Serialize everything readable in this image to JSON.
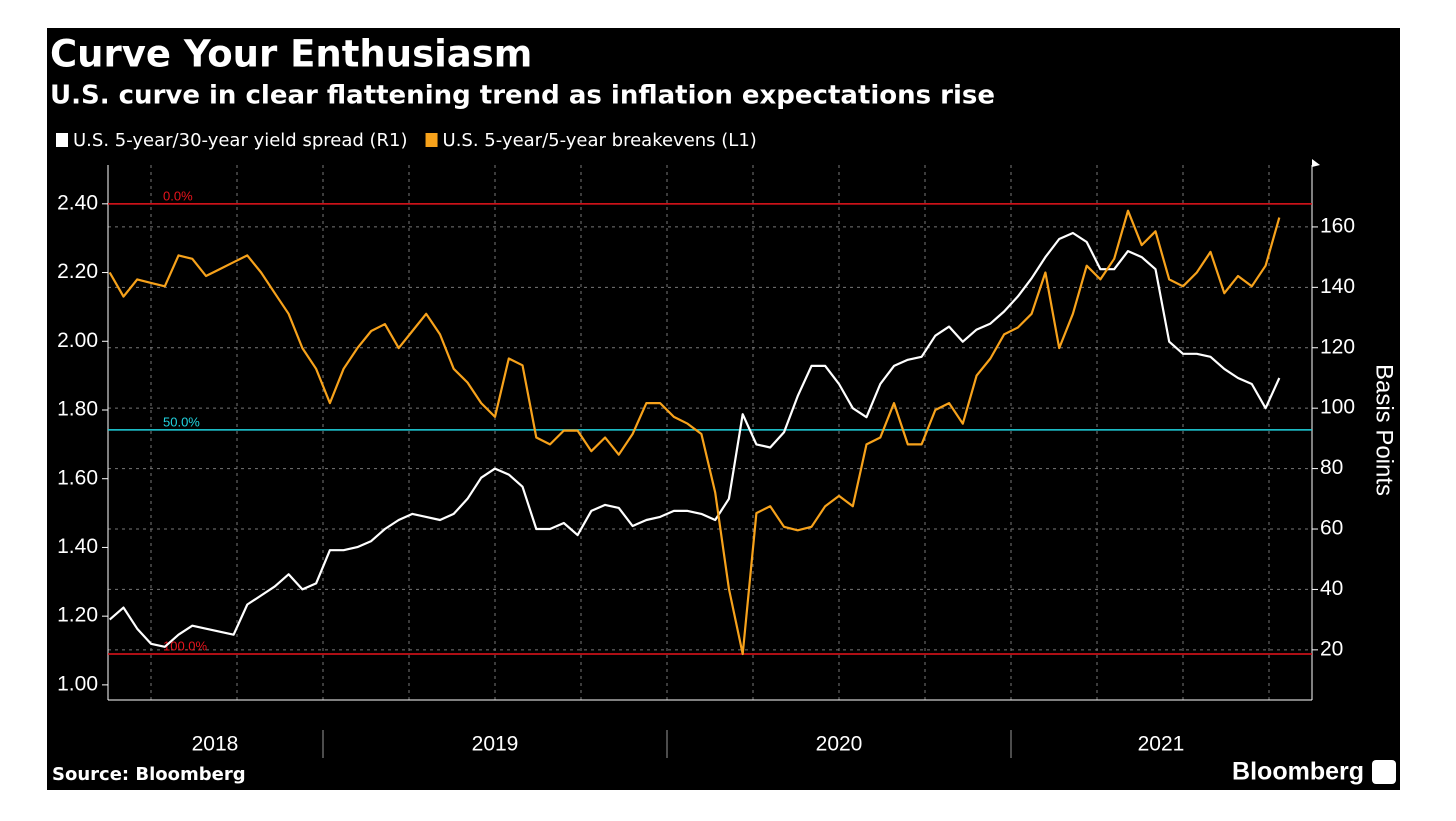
{
  "chart_data": {
    "type": "line",
    "title": "Curve Your Enthusiasm",
    "subtitle": "U.S. curve in clear flattening trend as inflation expectations rise",
    "source": "Source: Bloomberg",
    "logo": "Bloomberg",
    "y2_label": "Basis Points",
    "x": [
      2018.38,
      2018.42,
      2018.46,
      2018.5,
      2018.54,
      2018.58,
      2018.62,
      2018.66,
      2018.7,
      2018.74,
      2018.78,
      2018.82,
      2018.86,
      2018.9,
      2018.94,
      2018.98,
      2019.02,
      2019.06,
      2019.1,
      2019.14,
      2019.18,
      2019.22,
      2019.26,
      2019.3,
      2019.34,
      2019.38,
      2019.42,
      2019.46,
      2019.5,
      2019.54,
      2019.58,
      2019.62,
      2019.66,
      2019.7,
      2019.74,
      2019.78,
      2019.82,
      2019.86,
      2019.9,
      2019.94,
      2019.98,
      2020.02,
      2020.06,
      2020.1,
      2020.14,
      2020.18,
      2020.22,
      2020.26,
      2020.3,
      2020.34,
      2020.38,
      2020.42,
      2020.46,
      2020.5,
      2020.54,
      2020.58,
      2020.62,
      2020.66,
      2020.7,
      2020.74,
      2020.78,
      2020.82,
      2020.86,
      2020.9,
      2020.94,
      2020.98,
      2021.02,
      2021.06,
      2021.1,
      2021.14,
      2021.18,
      2021.22,
      2021.26,
      2021.3,
      2021.34,
      2021.38,
      2021.42,
      2021.46,
      2021.5,
      2021.54,
      2021.58,
      2021.62,
      2021.66,
      2021.7,
      2021.74,
      2021.78,
      2021.82,
      2021.86
    ],
    "series": [
      {
        "name": "U.S. 5-year/30-year yield spread (R1)",
        "color": "#ffffff",
        "axis": "y2",
        "values": [
          30,
          34,
          27,
          22,
          21,
          25,
          28,
          27,
          26,
          25,
          35,
          38,
          41,
          45,
          40,
          42,
          53,
          53,
          54,
          56,
          60,
          63,
          65,
          64,
          63,
          65,
          70,
          77,
          80,
          78,
          74,
          60,
          60,
          62,
          58,
          66,
          68,
          67,
          61,
          63,
          64,
          66,
          66,
          65,
          63,
          70,
          98,
          88,
          87,
          92,
          104,
          114,
          114,
          108,
          100,
          97,
          108,
          114,
          116,
          117,
          124,
          127,
          122,
          126,
          128,
          132,
          137,
          143,
          150,
          156,
          158,
          155,
          146,
          146,
          152,
          150,
          146,
          122,
          118,
          118,
          117,
          113,
          110,
          108,
          100,
          110,
          null,
          null
        ]
      },
      {
        "name": "U.S. 5-year/5-year breakevens (L1)",
        "color": "#f7a21b",
        "axis": "y",
        "values": [
          2.2,
          2.13,
          2.18,
          2.17,
          2.16,
          2.25,
          2.24,
          2.19,
          2.21,
          2.23,
          2.25,
          2.2,
          2.14,
          2.08,
          1.98,
          1.92,
          1.82,
          1.92,
          1.98,
          2.03,
          2.05,
          1.98,
          2.03,
          2.08,
          2.02,
          1.92,
          1.88,
          1.82,
          1.78,
          1.95,
          1.93,
          1.72,
          1.7,
          1.74,
          1.74,
          1.68,
          1.72,
          1.67,
          1.73,
          1.82,
          1.82,
          1.78,
          1.76,
          1.73,
          1.56,
          1.28,
          1.09,
          1.5,
          1.52,
          1.46,
          1.45,
          1.46,
          1.52,
          1.55,
          1.52,
          1.7,
          1.72,
          1.82,
          1.7,
          1.7,
          1.8,
          1.82,
          1.76,
          1.9,
          1.95,
          2.02,
          2.04,
          2.08,
          2.2,
          1.98,
          2.08,
          2.22,
          2.18,
          2.24,
          2.38,
          2.28,
          2.32,
          2.18,
          2.16,
          2.2,
          2.26,
          2.14,
          2.19,
          2.16,
          2.22,
          2.36,
          null,
          null
        ]
      }
    ],
    "reference_lines": [
      {
        "label": "0.0%",
        "value": 2.4,
        "color": "#e8141c"
      },
      {
        "label": "50.0%",
        "value": 1.742,
        "color": "#21d4e0"
      },
      {
        "label": "100.0%",
        "value": 1.09,
        "color": "#e8141c"
      }
    ],
    "xlim": [
      2018.375,
      2021.875
    ],
    "xticks": [
      {
        "value": 2018.686,
        "label": "2018"
      },
      {
        "value": 2019.5,
        "label": "2019"
      },
      {
        "value": 2020.5,
        "label": "2020"
      },
      {
        "value": 2021.436,
        "label": "2021"
      }
    ],
    "ylim": [
      0.956,
      2.513
    ],
    "yticks": [
      {
        "value": 1.0,
        "label": "1.00"
      },
      {
        "value": 1.2,
        "label": "1.20"
      },
      {
        "value": 1.4,
        "label": "1.40"
      },
      {
        "value": 1.6,
        "label": "1.60"
      },
      {
        "value": 1.8,
        "label": "1.80"
      },
      {
        "value": 2.0,
        "label": "2.00"
      },
      {
        "value": 2.2,
        "label": "2.20"
      },
      {
        "value": 2.4,
        "label": "2.40"
      }
    ],
    "y2lim": [
      3.4,
      180.5
    ],
    "y2ticks": [
      20,
      40,
      60,
      80,
      100,
      120,
      140,
      160
    ],
    "grid": true
  }
}
